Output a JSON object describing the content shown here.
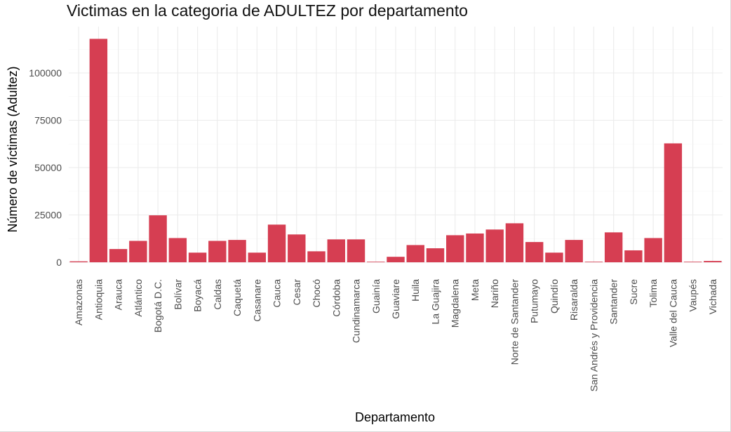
{
  "chart_data": {
    "type": "bar",
    "title": "Victimas en la categoria de ADULTEZ por departamento",
    "xlabel": "Departamento",
    "ylabel": "Número de víctimas (Adultez)",
    "ylim": [
      0,
      120000
    ],
    "yticks": [
      0,
      25000,
      50000,
      75000,
      100000
    ],
    "ytick_labels": [
      "0",
      "25000",
      "50000",
      "75000",
      "100000"
    ],
    "bar_color": "#d63e52",
    "grid": true,
    "categories": [
      "Amazonas",
      "Antioquia",
      "Arauca",
      "Atlántico",
      "Bogotá D.C.",
      "Bolívar",
      "Boyacá",
      "Caldas",
      "Caquetá",
      "Casanare",
      "Cauca",
      "Cesar",
      "Chocó",
      "Córdoba",
      "Cundinamarca",
      "Guainía",
      "Guaviare",
      "Huila",
      "La Guajira",
      "Magdalena",
      "Meta",
      "Nariño",
      "Norte de Santander",
      "Putumayo",
      "Quindío",
      "Risaralda",
      "San Andrés y Providencia",
      "Santander",
      "Sucre",
      "Tolima",
      "Valle del Cauca",
      "Vaupés",
      "Vichada"
    ],
    "values": [
      500,
      118000,
      7000,
      11300,
      24800,
      12800,
      5100,
      11300,
      11800,
      5100,
      19900,
      14700,
      5800,
      12100,
      12100,
      300,
      2900,
      9100,
      7400,
      14300,
      15200,
      17300,
      20600,
      10700,
      5100,
      11800,
      300,
      15800,
      6300,
      12800,
      62800,
      300,
      700
    ]
  }
}
